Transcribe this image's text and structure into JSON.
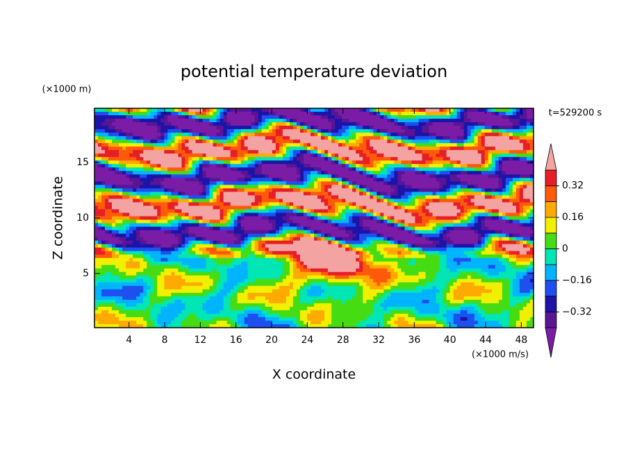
{
  "chart_data": {
    "type": "contour",
    "title": "potential temperature deviation",
    "x_label": "X coordinate",
    "y_label": "Z coordinate",
    "x_unit": "(×1000 m/s)",
    "y_unit": "(×1000 m)",
    "time_label": "t=529200 s",
    "xlim": [
      0.125,
      49.375
    ],
    "ylim": [
      0.125,
      19.875
    ],
    "xticks": [
      4,
      8,
      12,
      16,
      20,
      24,
      28,
      32,
      36,
      40,
      44,
      48
    ],
    "yticks": [
      5,
      10,
      15
    ],
    "levels": [
      -0.4,
      -0.32,
      -0.24,
      -0.16,
      -0.08,
      0,
      0.08,
      0.16,
      0.24,
      0.32,
      0.4
    ],
    "colors": [
      "#5a1496",
      "#1c14a8",
      "#1e50f0",
      "#00b4ff",
      "#00e6b4",
      "#46dc14",
      "#f0f000",
      "#ffaa00",
      "#ff5a0a",
      "#e61e28"
    ],
    "under_color": "#7a1ca6",
    "over_color": "#f4a3a3",
    "colorbar_ticks": [
      {
        "value": -0.32,
        "label": "−0.32"
      },
      {
        "value": -0.16,
        "label": "−0.16"
      },
      0,
      0.16,
      0.32
    ]
  }
}
